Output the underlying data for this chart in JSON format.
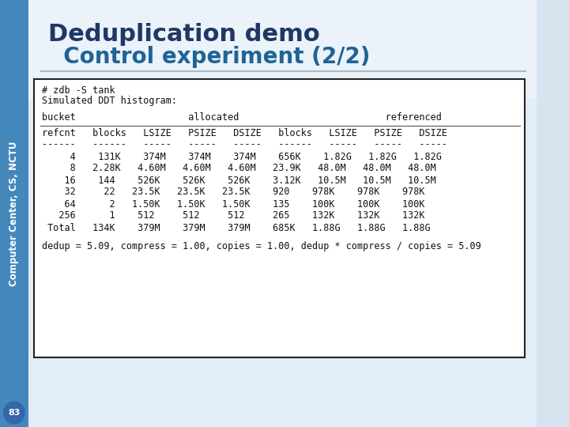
{
  "title_line1": "Deduplication demo",
  "title_line2": "  Control experiment (2/2)",
  "title_color": "#1F3864",
  "title2_color": "#1F6496",
  "sidebar_text": "Computer Center, CS, NCTU",
  "slide_number": "83",
  "code_lines": [
    "# zdb -S tank",
    "Simulated DDT histogram:",
    "",
    "bucket                    allocated                          referenced",
    "",
    "refcnt   blocks   LSIZE   PSIZE   DSIZE   blocks   LSIZE   PSIZE   DSIZE",
    "------   ------   -----   -----   -----   ------   -----   -----   -----",
    "     4    131K    374M    374M    374M    656K    1.82G   1.82G   1.82G",
    "     8   2.28K   4.60M   4.60M   4.60M   23.9K   48.0M   48.0M   48.0M",
    "    16    144    526K    526K    526K    3.12K   10.5M   10.5M   10.5M",
    "    32     22   23.5K   23.5K   23.5K    920    978K    978K    978K",
    "    64      2   1.50K   1.50K   1.50K    135    100K    100K    100K",
    "   256      1    512     512     512     265    132K    132K    132K",
    " Total   134K    379M    379M    379M    685K   1.88G   1.88G   1.88G",
    "",
    "dedup = 5.09, compress = 1.00, copies = 1.00, dedup * compress / copies = 5.09"
  ],
  "code_font_size": 8.5,
  "sidebar_color": "#4488BB",
  "bg_color": "#D6E4F0",
  "box_border": "#222222"
}
